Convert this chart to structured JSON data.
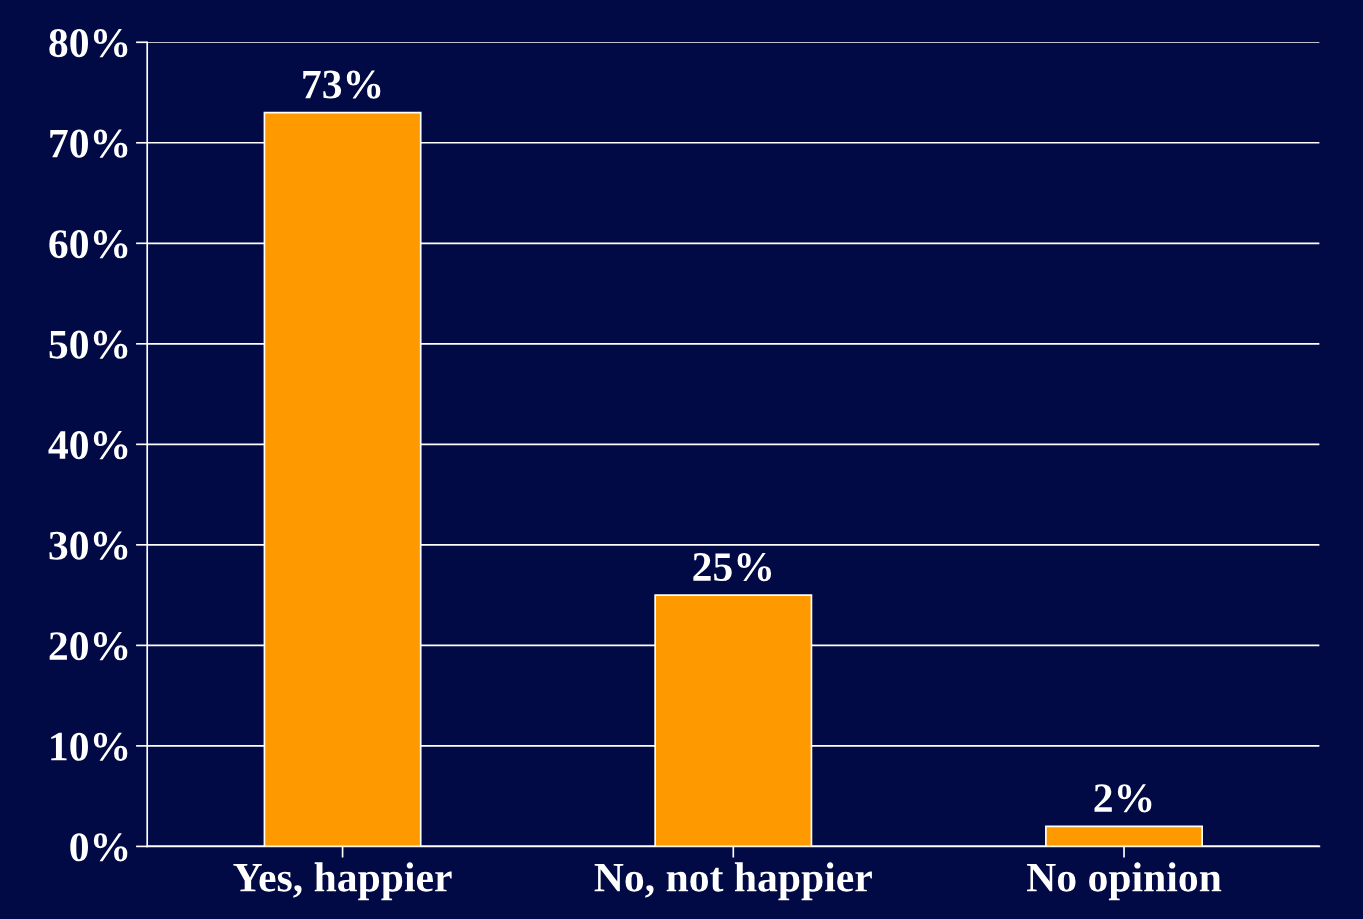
{
  "chart_data": {
    "type": "bar",
    "categories": [
      "Yes, happier",
      "No, not happier",
      "No opinion"
    ],
    "values": [
      73,
      25,
      2
    ],
    "value_labels": [
      "73%",
      "25%",
      "2%"
    ],
    "color": "#ff9900",
    "ylim": [
      0,
      80
    ],
    "yticks": [
      {
        "value": 0,
        "label": "0%"
      },
      {
        "value": 10,
        "label": "10%"
      },
      {
        "value": 20,
        "label": "20%"
      },
      {
        "value": 30,
        "label": "30%"
      },
      {
        "value": 40,
        "label": "40%"
      },
      {
        "value": 50,
        "label": "50%"
      },
      {
        "value": 60,
        "label": "60%"
      },
      {
        "value": 70,
        "label": "70%"
      },
      {
        "value": 80,
        "label": "80%"
      }
    ],
    "grid": "y"
  }
}
